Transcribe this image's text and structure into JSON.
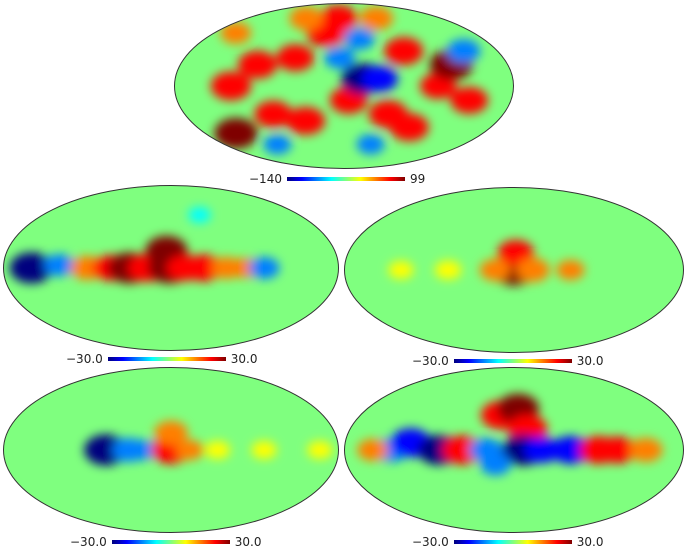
{
  "colormap": [
    "#00007f",
    "#0000ff",
    "#007fff",
    "#00ffff",
    "#7fff7f",
    "#ffff00",
    "#ff7f00",
    "#ff0000",
    "#7f0000"
  ],
  "background_color": "#7fff7f",
  "panels": [
    {
      "id": "top",
      "colorbar_min": "−140",
      "colorbar_max": "99",
      "blobs": [
        {
          "lon": -140,
          "lat": -35,
          "val": 0.95
        },
        {
          "lon": -120,
          "lat": 0,
          "val": 0.85
        },
        {
          "lon": -95,
          "lat": 15,
          "val": 0.8
        },
        {
          "lon": -80,
          "lat": -20,
          "val": 0.75
        },
        {
          "lon": -55,
          "lat": 20,
          "val": 0.75
        },
        {
          "lon": -45,
          "lat": -25,
          "val": 0.8
        },
        {
          "lon": -25,
          "lat": 40,
          "val": 0.8
        },
        {
          "lon": -10,
          "lat": 55,
          "val": 0.75
        },
        {
          "lon": 5,
          "lat": -10,
          "val": 0.75
        },
        {
          "lon": 20,
          "lat": 5,
          "val": -0.95
        },
        {
          "lon": 38,
          "lat": 5,
          "val": -0.7
        },
        {
          "lon": 20,
          "lat": 35,
          "val": -0.5
        },
        {
          "lon": 50,
          "lat": -20,
          "val": 0.8
        },
        {
          "lon": 70,
          "lat": 25,
          "val": 0.8
        },
        {
          "lon": 80,
          "lat": -30,
          "val": 0.8
        },
        {
          "lon": 100,
          "lat": 0,
          "val": 0.7
        },
        {
          "lon": 118,
          "lat": 15,
          "val": 0.95
        },
        {
          "lon": 135,
          "lat": -10,
          "val": 0.75
        },
        {
          "lon": 140,
          "lat": 25,
          "val": -0.6
        },
        {
          "lon": -150,
          "lat": 40,
          "val": 0.5
        },
        {
          "lon": -70,
          "lat": 55,
          "val": 0.6
        },
        {
          "lon": -100,
          "lat": -45,
          "val": -0.4
        },
        {
          "lon": 40,
          "lat": -45,
          "val": -0.4
        },
        {
          "lon": -5,
          "lat": 20,
          "val": -0.5
        },
        {
          "lon": 60,
          "lat": 55,
          "val": 0.6
        }
      ]
    },
    {
      "id": "middle-left",
      "colorbar_min": "−30.0",
      "colorbar_max": "30.0",
      "blobs": [
        {
          "lon": -150,
          "lat": 0,
          "val": -0.95
        },
        {
          "lon": -120,
          "lat": 2,
          "val": -0.5
        },
        {
          "lon": -90,
          "lat": 0,
          "val": 0.6
        },
        {
          "lon": -65,
          "lat": 0,
          "val": 0.7
        },
        {
          "lon": -45,
          "lat": 0,
          "val": 0.95
        },
        {
          "lon": -25,
          "lat": 0,
          "val": 0.8
        },
        {
          "lon": -5,
          "lat": 12,
          "val": 0.9
        },
        {
          "lon": -2,
          "lat": 0,
          "val": 0.95
        },
        {
          "lon": 15,
          "lat": 0,
          "val": 0.7
        },
        {
          "lon": 35,
          "lat": 0,
          "val": 0.75
        },
        {
          "lon": 60,
          "lat": 0,
          "val": 0.5
        },
        {
          "lon": 80,
          "lat": 0,
          "val": 0.4
        },
        {
          "lon": 100,
          "lat": 0,
          "val": -0.5
        },
        {
          "lon": 40,
          "lat": 40,
          "val": -0.2
        }
      ]
    },
    {
      "id": "middle-right",
      "colorbar_min": "−30.0",
      "colorbar_max": "30.0",
      "blobs": [
        {
          "lon": 0,
          "lat": 0,
          "val": 0.95
        },
        {
          "lon": 2,
          "lat": 12,
          "val": 0.7
        },
        {
          "lon": 20,
          "lat": 0,
          "val": 0.6
        },
        {
          "lon": -20,
          "lat": 0,
          "val": 0.5
        },
        {
          "lon": -70,
          "lat": 0,
          "val": 0.35
        },
        {
          "lon": 60,
          "lat": 0,
          "val": 0.4
        },
        {
          "lon": -120,
          "lat": 0,
          "val": 0.3
        }
      ]
    },
    {
      "id": "bottom-left",
      "colorbar_min": "−30.0",
      "colorbar_max": "30.0",
      "blobs": [
        {
          "lon": -70,
          "lat": 0,
          "val": -0.95
        },
        {
          "lon": -45,
          "lat": 0,
          "val": -0.6
        },
        {
          "lon": -30,
          "lat": 0,
          "val": -0.4
        },
        {
          "lon": 0,
          "lat": 0,
          "val": 0.8
        },
        {
          "lon": 0,
          "lat": 12,
          "val": 0.6
        },
        {
          "lon": 20,
          "lat": 0,
          "val": 0.4
        },
        {
          "lon": 50,
          "lat": 0,
          "val": 0.3
        },
        {
          "lon": 100,
          "lat": 0,
          "val": 0.3
        },
        {
          "lon": 160,
          "lat": 0,
          "val": 0.3
        }
      ]
    },
    {
      "id": "bottom-right",
      "colorbar_min": "−30.0",
      "colorbar_max": "30.0",
      "blobs": [
        {
          "lon": -130,
          "lat": 0,
          "val": -0.6
        },
        {
          "lon": -110,
          "lat": 5,
          "val": -0.85
        },
        {
          "lon": -80,
          "lat": 0,
          "val": -0.9
        },
        {
          "lon": -55,
          "lat": 0,
          "val": 0.85
        },
        {
          "lon": -30,
          "lat": 0,
          "val": -0.6
        },
        {
          "lon": -15,
          "lat": 25,
          "val": 0.85
        },
        {
          "lon": 5,
          "lat": 30,
          "val": 0.9
        },
        {
          "lon": 15,
          "lat": 15,
          "val": 0.8
        },
        {
          "lon": 10,
          "lat": 0,
          "val": -0.95
        },
        {
          "lon": 30,
          "lat": 0,
          "val": -0.7
        },
        {
          "lon": 60,
          "lat": 0,
          "val": -0.8
        },
        {
          "lon": 90,
          "lat": 0,
          "val": 0.8
        },
        {
          "lon": 110,
          "lat": 0,
          "val": 0.75
        },
        {
          "lon": 140,
          "lat": 0,
          "val": 0.6
        },
        {
          "lon": -20,
          "lat": -10,
          "val": -0.5
        },
        {
          "lon": -150,
          "lat": 0,
          "val": 0.5
        }
      ]
    }
  ]
}
